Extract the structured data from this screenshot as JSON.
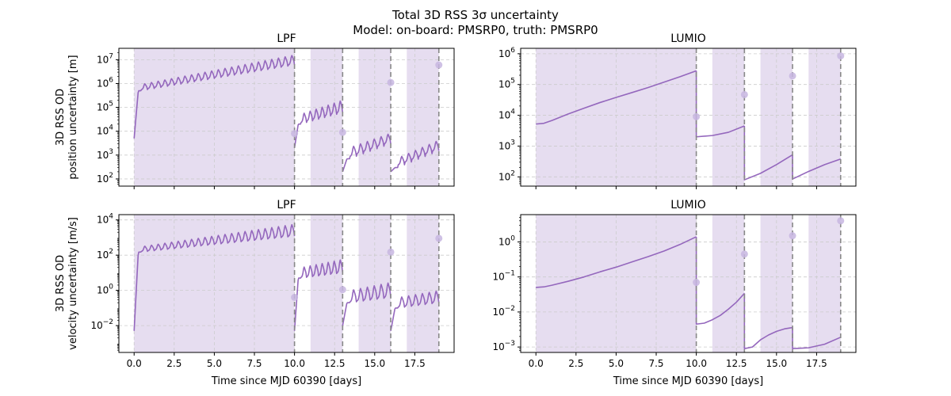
{
  "title": {
    "line1": "Total 3D RSS 3σ uncertainty",
    "line2": "Model: on-board: PMSRP0, truth: PMSRP0"
  },
  "colors": {
    "line": "#9467bd",
    "shade": "#e6ddf0",
    "marker": "#c7b6e0",
    "vline": "#888888",
    "grid": "#cccccc"
  },
  "chart_data": [
    {
      "id": "lpf-position",
      "type": "line",
      "title": "LPF",
      "ylabel": [
        "3D RSS OD",
        "position uncertainty [m]"
      ],
      "xlabel": "",
      "yscale": "log",
      "ylim": [
        50,
        30000000
      ],
      "xlim": [
        -0.95,
        19.95
      ],
      "xticks": [
        0,
        2.5,
        5,
        7.5,
        10,
        12.5,
        15,
        17.5
      ],
      "xticklabels": [],
      "yticks": [
        100,
        1000,
        10000,
        100000,
        1000000,
        10000000
      ],
      "yticklabels": [
        "10^2",
        "10^3",
        "10^4",
        "10^5",
        "10^6",
        "10^7"
      ],
      "grid": true,
      "shaded_intervals": [
        [
          0,
          10
        ],
        [
          11,
          13
        ],
        [
          14,
          16
        ],
        [
          17,
          19
        ]
      ],
      "vlines": [
        10,
        13,
        16,
        19
      ],
      "markers": [
        {
          "x": 10,
          "y": 8000
        },
        {
          "x": 13,
          "y": 9000
        },
        {
          "x": 16,
          "y": 1100000
        },
        {
          "x": 19,
          "y": 6000000
        }
      ],
      "segments": [
        {
          "x0": 0,
          "x1": 10,
          "start": 5000,
          "base0": 500000,
          "base1": 6000000,
          "peak0": 900000,
          "peak1": 16000000,
          "n": 24,
          "rise": 0.5
        },
        {
          "x0": 10,
          "x1": 13,
          "start": 2000,
          "base0": 20000,
          "base1": 60000,
          "peak0": 50000,
          "peak1": 200000,
          "n": 8,
          "rise": 0.1
        },
        {
          "x0": 13,
          "x1": 16,
          "start": 200,
          "base0": 700,
          "base1": 3000,
          "peak0": 2000,
          "peak1": 8000,
          "n": 7,
          "rise": 0.2
        },
        {
          "x0": 16,
          "x1": 19,
          "start": 200,
          "base0": 300,
          "base1": 1500,
          "peak0": 700,
          "peak1": 4000,
          "n": 7,
          "rise": 0.2
        }
      ]
    },
    {
      "id": "lumio-position",
      "type": "line",
      "title": "LUMIO",
      "ylabel": [],
      "xlabel": "",
      "yscale": "log",
      "ylim": [
        50,
        1500000
      ],
      "xlim": [
        -0.95,
        19.95
      ],
      "xticks": [
        0,
        2.5,
        5,
        7.5,
        10,
        12.5,
        15,
        17.5
      ],
      "xticklabels": [],
      "yticks": [
        100,
        1000,
        10000,
        100000,
        1000000
      ],
      "yticklabels": [
        "10^2",
        "10^3",
        "10^4",
        "10^5",
        "10^6"
      ],
      "grid": true,
      "shaded_intervals": [
        [
          0,
          10
        ],
        [
          11,
          13
        ],
        [
          14,
          16
        ],
        [
          17,
          19
        ]
      ],
      "vlines": [
        10,
        13,
        16,
        19
      ],
      "markers": [
        {
          "x": 10,
          "y": 9000
        },
        {
          "x": 13,
          "y": 47000
        },
        {
          "x": 16,
          "y": 190000
        },
        {
          "x": 19,
          "y": 850000
        }
      ],
      "lines": [
        {
          "x": [
            0,
            0.5,
            1,
            2,
            3,
            4,
            5,
            6,
            7,
            8,
            9,
            10
          ],
          "y": [
            5200,
            5500,
            6800,
            11000,
            17000,
            26000,
            38000,
            55000,
            80000,
            120000,
            180000,
            280000
          ]
        },
        {
          "x": [
            10,
            10,
            11,
            12,
            13
          ],
          "y": [
            280000,
            2000,
            2200,
            2800,
            4500
          ]
        },
        {
          "x": [
            13,
            13,
            14,
            15,
            16
          ],
          "y": [
            4500,
            80,
            130,
            250,
            520
          ]
        },
        {
          "x": [
            16,
            16,
            17,
            18,
            19
          ],
          "y": [
            520,
            85,
            150,
            250,
            380
          ]
        }
      ]
    },
    {
      "id": "lpf-velocity",
      "type": "line",
      "title": "LPF",
      "ylabel": [
        "3D RSS OD",
        "velocity uncertainty [m/s]"
      ],
      "xlabel": "Time since MJD 60390 [days]",
      "yscale": "log",
      "ylim": [
        0.0003,
        20000
      ],
      "xlim": [
        -0.95,
        19.95
      ],
      "xticks": [
        0,
        2.5,
        5,
        7.5,
        10,
        12.5,
        15,
        17.5
      ],
      "xticklabels": [
        "0.0",
        "2.5",
        "5.0",
        "7.5",
        "10.0",
        "12.5",
        "15.0",
        "17.5"
      ],
      "yticks": [
        0.01,
        1,
        100,
        10000
      ],
      "yticklabels": [
        "10^-2",
        "10^0",
        "10^2",
        "10^4"
      ],
      "grid": true,
      "shaded_intervals": [
        [
          0,
          10
        ],
        [
          11,
          13
        ],
        [
          14,
          16
        ],
        [
          17,
          19
        ]
      ],
      "vlines": [
        10,
        13,
        16,
        19
      ],
      "markers": [
        {
          "x": 10,
          "y": 0.4
        },
        {
          "x": 13,
          "y": 1.1
        },
        {
          "x": 16,
          "y": 150
        },
        {
          "x": 19,
          "y": 900
        }
      ],
      "segments": [
        {
          "x0": 0,
          "x1": 10,
          "start": 0.005,
          "base0": 150,
          "base1": 1200,
          "peak0": 300,
          "peak1": 6000,
          "n": 24,
          "rise": 0.5
        },
        {
          "x0": 10,
          "x1": 13,
          "start": 0.005,
          "base0": 5,
          "base1": 10,
          "peak0": 20,
          "peak1": 60,
          "n": 8,
          "rise": 0.2
        },
        {
          "x0": 13,
          "x1": 16,
          "start": 0.01,
          "base0": 0.2,
          "base1": 0.4,
          "peak0": 1,
          "peak1": 3,
          "n": 7,
          "rise": 0.2
        },
        {
          "x0": 16,
          "x1": 19,
          "start": 0.005,
          "base0": 0.1,
          "base1": 0.2,
          "peak0": 0.4,
          "peak1": 1,
          "n": 7,
          "rise": 0.2
        }
      ]
    },
    {
      "id": "lumio-velocity",
      "type": "line",
      "title": "LUMIO",
      "ylabel": [],
      "xlabel": "Time since MJD 60390 [days]",
      "yscale": "log",
      "ylim": [
        0.0007,
        6
      ],
      "xlim": [
        -0.95,
        19.95
      ],
      "xticks": [
        0,
        2.5,
        5,
        7.5,
        10,
        12.5,
        15,
        17.5
      ],
      "xticklabels": [
        "0.0",
        "2.5",
        "5.0",
        "7.5",
        "10.0",
        "12.5",
        "15.0",
        "17.5"
      ],
      "yticks": [
        0.001,
        0.01,
        0.1,
        1
      ],
      "yticklabels": [
        "10^-3",
        "10^-2",
        "10^-1",
        "10^0"
      ],
      "grid": true,
      "shaded_intervals": [
        [
          0,
          10
        ],
        [
          11,
          13
        ],
        [
          14,
          16
        ],
        [
          17,
          19
        ]
      ],
      "vlines": [
        10,
        13,
        16,
        19
      ],
      "markers": [
        {
          "x": 10,
          "y": 0.07
        },
        {
          "x": 13,
          "y": 0.45
        },
        {
          "x": 16,
          "y": 1.5
        },
        {
          "x": 19,
          "y": 4
        }
      ],
      "lines": [
        {
          "x": [
            0,
            0.5,
            1,
            2,
            3,
            4,
            5,
            6,
            7,
            8,
            9,
            10
          ],
          "y": [
            0.05,
            0.052,
            0.058,
            0.075,
            0.1,
            0.14,
            0.19,
            0.27,
            0.38,
            0.55,
            0.85,
            1.4
          ]
        },
        {
          "x": [
            10,
            10,
            10.5,
            11,
            11.5,
            12,
            12.5,
            13
          ],
          "y": [
            1.4,
            0.0045,
            0.0048,
            0.006,
            0.008,
            0.012,
            0.019,
            0.034
          ]
        },
        {
          "x": [
            13,
            13,
            13.5,
            14,
            14.5,
            15,
            15.5,
            16
          ],
          "y": [
            0.034,
            0.0009,
            0.001,
            0.0016,
            0.0022,
            0.0028,
            0.0033,
            0.0036
          ]
        },
        {
          "x": [
            16,
            16,
            17,
            18,
            19
          ],
          "y": [
            0.0036,
            0.0009,
            0.00095,
            0.0012,
            0.0019
          ]
        }
      ]
    }
  ]
}
